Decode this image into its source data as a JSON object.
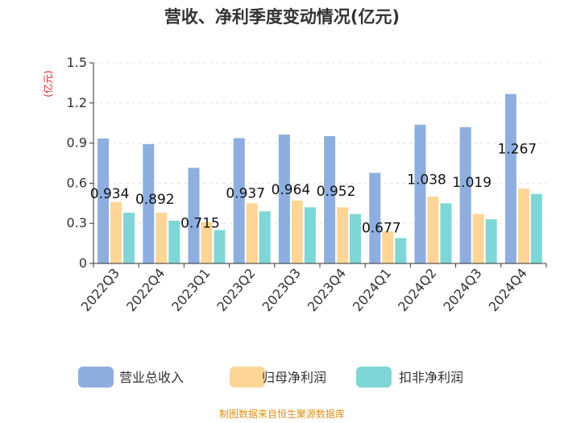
{
  "chart_data": {
    "type": "bar",
    "title": "营收、净利季度变动情况(亿元)",
    "unit_label": "(亿元)",
    "categories": [
      "2022Q3",
      "2022Q4",
      "2023Q1",
      "2023Q2",
      "2023Q3",
      "2023Q4",
      "2024Q1",
      "2024Q2",
      "2024Q3",
      "2024Q4"
    ],
    "series": [
      {
        "name": "营业总收入",
        "color": "#8eaee0",
        "values": [
          0.934,
          0.892,
          0.715,
          0.937,
          0.964,
          0.952,
          0.677,
          1.038,
          1.019,
          1.267
        ]
      },
      {
        "name": "归母净利润",
        "color": "#fdd597",
        "values": [
          0.46,
          0.38,
          0.31,
          0.45,
          0.47,
          0.42,
          0.24,
          0.5,
          0.37,
          0.56
        ]
      },
      {
        "name": "扣非净利润",
        "color": "#7fd6d6",
        "values": [
          0.38,
          0.32,
          0.25,
          0.39,
          0.42,
          0.37,
          0.19,
          0.45,
          0.33,
          0.52
        ]
      }
    ],
    "data_labels": [
      "0.934",
      "0.892",
      "0.715",
      "0.937",
      "0.964",
      "0.952",
      "0.677",
      "1.038",
      "1.019",
      "1.267"
    ],
    "yticks": [
      "0",
      "0.3",
      "0.6",
      "0.9",
      "1.2",
      "1.5"
    ],
    "ylim": [
      0,
      1.5
    ],
    "grid": true,
    "legend_position": "bottom",
    "source": "制图数据来自恒生聚源数据库"
  }
}
